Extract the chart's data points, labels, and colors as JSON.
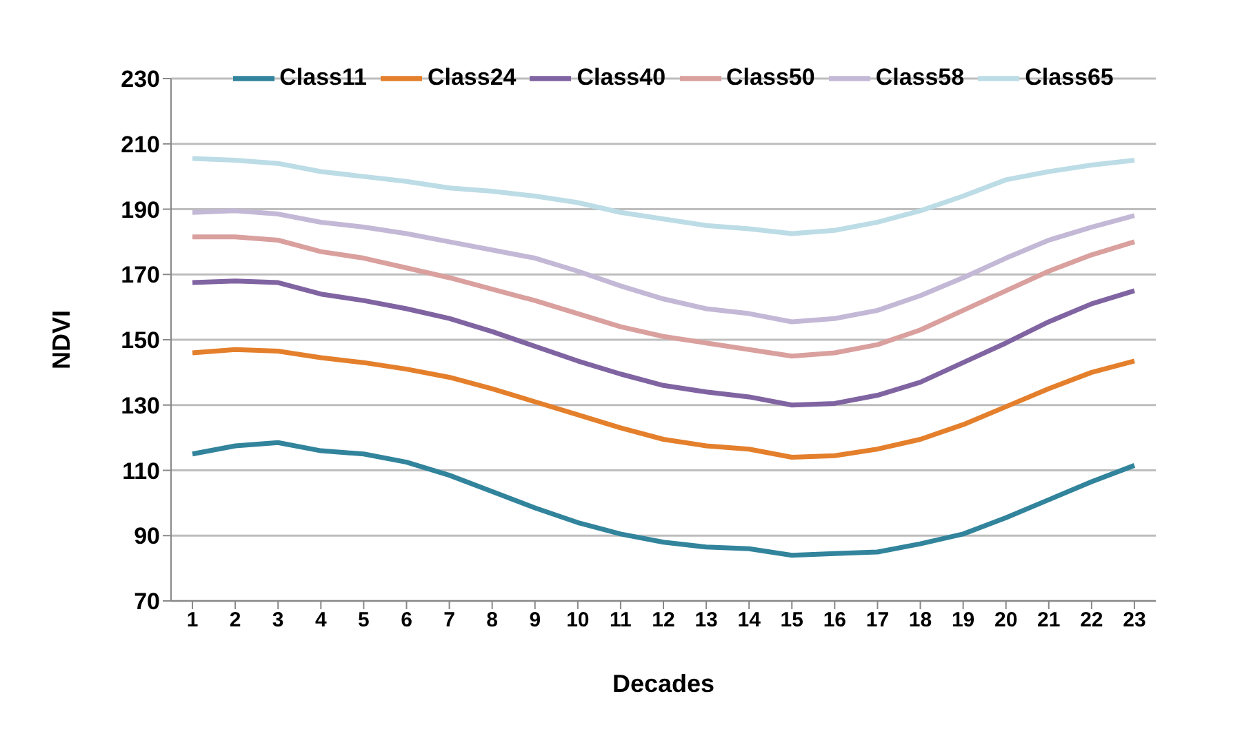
{
  "chart_data": {
    "type": "line",
    "xlabel": "Decades",
    "ylabel": "NDVI",
    "x": [
      1,
      2,
      3,
      4,
      5,
      6,
      7,
      8,
      9,
      10,
      11,
      12,
      13,
      14,
      15,
      16,
      17,
      18,
      19,
      20,
      21,
      22,
      23
    ],
    "xlim": [
      0.5,
      23.5
    ],
    "xticks": [
      1,
      2,
      3,
      4,
      5,
      6,
      7,
      8,
      9,
      10,
      11,
      12,
      13,
      14,
      15,
      16,
      17,
      18,
      19,
      20,
      21,
      22,
      23
    ],
    "series": [
      {
        "name": "Class11",
        "color": "#31849b",
        "values": [
          115,
          117.5,
          118.5,
          116,
          115,
          112.5,
          108.5,
          103.5,
          98.5,
          94,
          90.5,
          88,
          86.5,
          86,
          84,
          84.5,
          85,
          87.5,
          90.5,
          95.5,
          101,
          106.5,
          111.5
        ]
      },
      {
        "name": "Class24",
        "color": "#e47f2c",
        "values": [
          146,
          147,
          146.5,
          144.5,
          143,
          141,
          138.5,
          135,
          131,
          127,
          123,
          119.5,
          117.5,
          116.5,
          114,
          114.5,
          116.5,
          119.5,
          124,
          129.5,
          135,
          140,
          143.5
        ]
      },
      {
        "name": "Class40",
        "color": "#8064a2",
        "values": [
          167.5,
          168,
          167.5,
          164,
          162,
          159.5,
          156.5,
          152.5,
          148,
          143.5,
          139.5,
          136,
          134,
          132.5,
          130,
          130.5,
          133,
          137,
          143,
          149,
          155.5,
          161,
          165
        ]
      },
      {
        "name": "Class50",
        "color": "#d9a09e",
        "values": [
          181.5,
          181.5,
          180.5,
          177,
          175,
          172,
          169,
          165.5,
          162,
          158,
          154,
          151,
          149,
          147,
          145,
          146,
          148.5,
          153,
          159,
          165,
          171,
          176,
          180
        ]
      },
      {
        "name": "Class58",
        "color": "#c3b8d6",
        "values": [
          189,
          189.5,
          188.5,
          186,
          184.5,
          182.5,
          180,
          177.5,
          175,
          171,
          166.5,
          162.5,
          159.5,
          158,
          155.5,
          156.5,
          159,
          163.5,
          169,
          175,
          180.5,
          184.5,
          188
        ]
      },
      {
        "name": "Class65",
        "color": "#bcdce6",
        "values": [
          205.5,
          205,
          204,
          201.5,
          200,
          198.5,
          196.5,
          195.5,
          194,
          192,
          189,
          187,
          185,
          184,
          182.5,
          183.5,
          186,
          189.5,
          194,
          199,
          201.5,
          203.5,
          205
        ]
      }
    ],
    "ylim": [
      70,
      230
    ],
    "yticks": [
      70,
      90,
      110,
      130,
      150,
      170,
      190,
      210,
      230
    ],
    "grid": "y",
    "legend": "top",
    "marker": "none",
    "line_style": "solid"
  }
}
